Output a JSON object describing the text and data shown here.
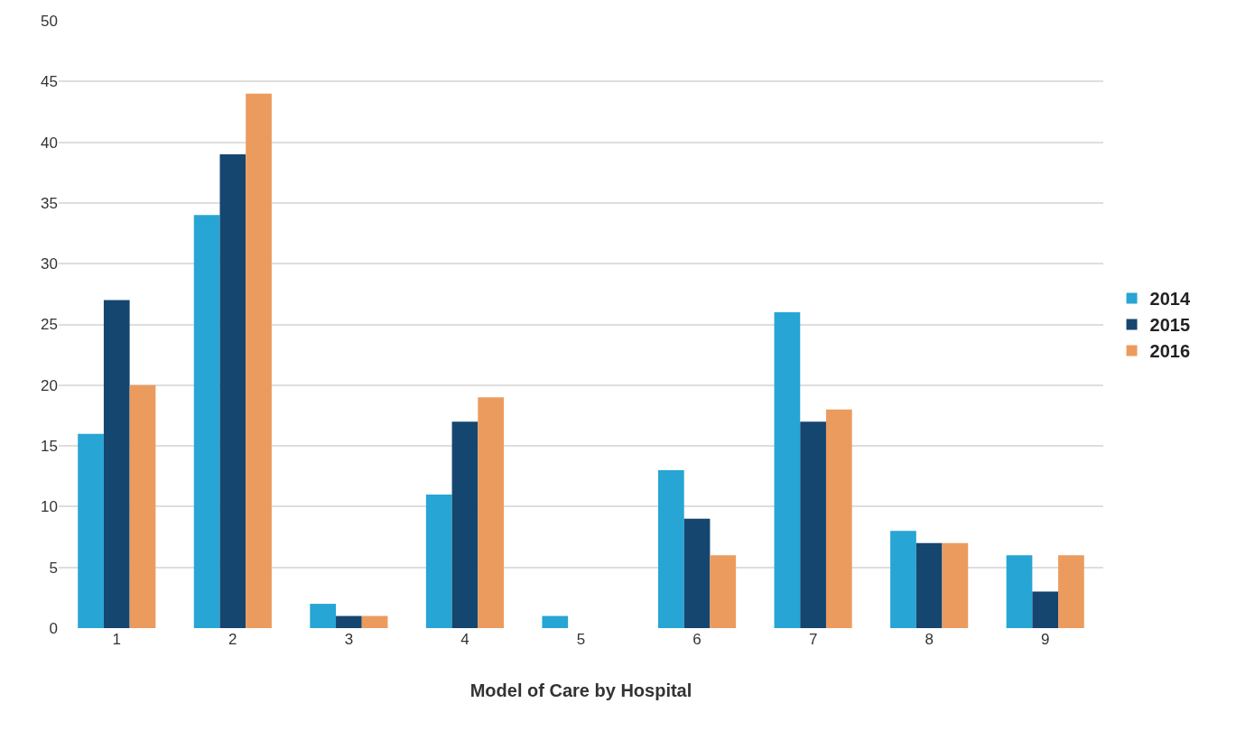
{
  "chart_data": {
    "type": "bar",
    "xlabel": "Model of Care by Hospital",
    "categories": [
      "1",
      "2",
      "3",
      "4",
      "5",
      "6",
      "7",
      "8",
      "9"
    ],
    "series": [
      {
        "name": "2014",
        "color": "#27a5d5",
        "values": [
          16,
          34,
          2,
          11,
          1,
          13,
          26,
          8,
          6
        ]
      },
      {
        "name": "2015",
        "color": "#154670",
        "values": [
          27,
          39,
          1,
          17,
          0,
          9,
          17,
          7,
          3
        ]
      },
      {
        "name": "2016",
        "color": "#ec9b5e",
        "values": [
          20,
          44,
          1,
          19,
          0,
          6,
          18,
          7,
          6
        ]
      }
    ],
    "ylim": [
      0,
      50
    ],
    "yticks": [
      0,
      5,
      10,
      15,
      20,
      25,
      30,
      35,
      40,
      45,
      50
    ],
    "grid": "y",
    "legend": "right"
  }
}
